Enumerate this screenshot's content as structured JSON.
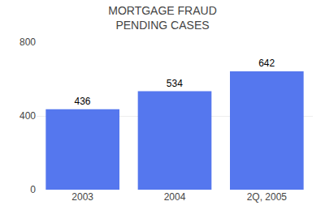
{
  "chart_data": {
    "type": "bar",
    "title": "MORTGAGE FRAUD\nPENDING CASES",
    "categories": [
      "2003",
      "2004",
      "2Q, 2005"
    ],
    "values": [
      436,
      534,
      642
    ],
    "color": "#5577EE",
    "ylim": [
      0,
      800
    ],
    "yticks": [
      0,
      400,
      800
    ],
    "grid": true,
    "data_labels": true
  }
}
